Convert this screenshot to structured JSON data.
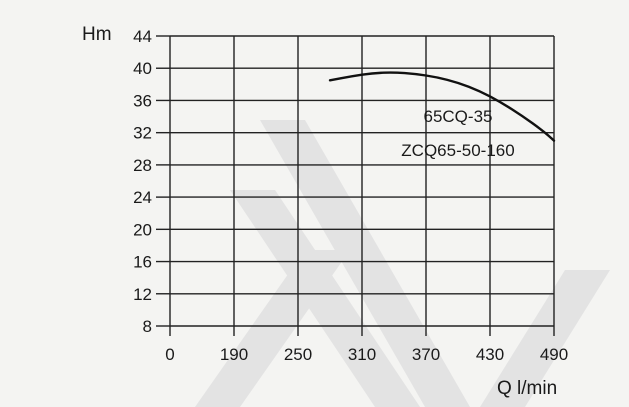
{
  "chart_data": {
    "type": "line",
    "ylabel": "Hm",
    "xlabel": "Q  l/min",
    "x_ticks": [
      "0",
      "190",
      "250",
      "310",
      "370",
      "430",
      "490"
    ],
    "y_ticks": [
      "8",
      "12",
      "16",
      "20",
      "24",
      "28",
      "32",
      "36",
      "40",
      "44"
    ],
    "ylim": [
      8,
      44
    ],
    "x_scale": "categorical-ticks (first interval 0–190, then uniform 60 l/min)",
    "grid": true,
    "series": [
      {
        "labels": [
          "65CQ-35",
          "ZCQ65-50-160"
        ],
        "color": "#111111",
        "x": [
          280,
          300,
          320,
          340,
          360,
          380,
          400,
          420,
          440,
          460,
          480,
          490
        ],
        "y": [
          38.5,
          39.0,
          39.4,
          39.5,
          39.3,
          38.9,
          38.2,
          37.2,
          35.8,
          34.1,
          32.2,
          31.0
        ]
      }
    ]
  }
}
